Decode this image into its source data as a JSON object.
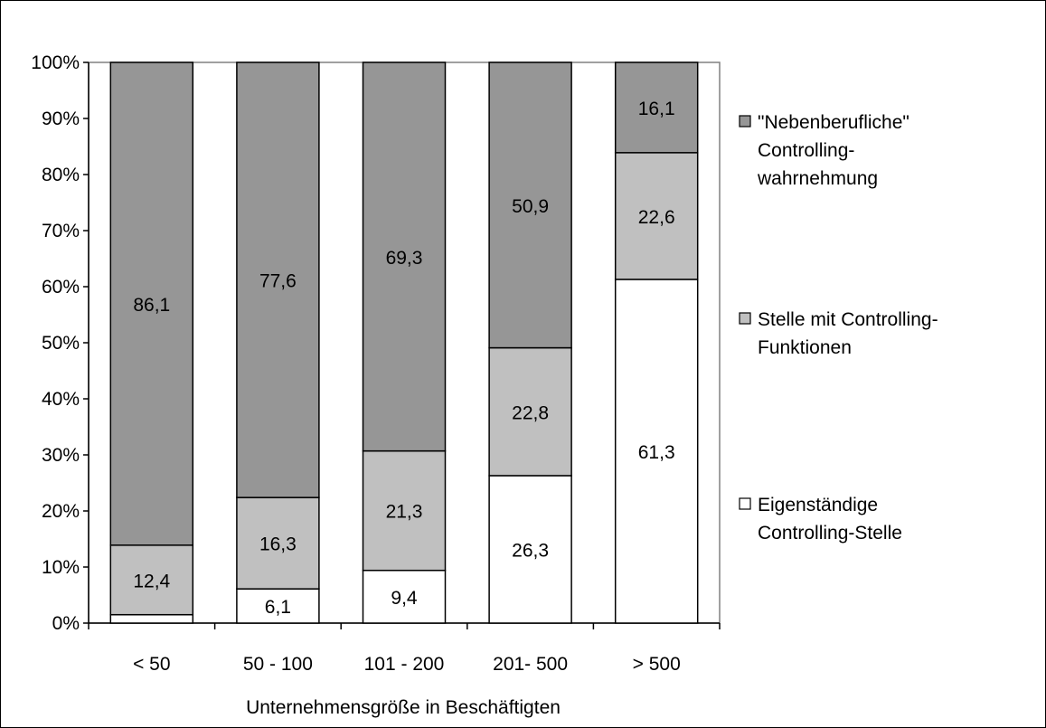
{
  "chart_data": {
    "type": "bar",
    "stacked": true,
    "title": "",
    "xlabel": "Unternehmensgröße in Beschäftigten",
    "ylabel": "",
    "ylim": [
      0,
      100
    ],
    "yticks": [
      "0%",
      "10%",
      "20%",
      "30%",
      "40%",
      "50%",
      "60%",
      "70%",
      "80%",
      "90%",
      "100%"
    ],
    "categories": [
      "< 50",
      "50 - 100",
      "101 - 200",
      "201- 500",
      "> 500"
    ],
    "series": [
      {
        "name": "Eigenständige Controlling-Stelle",
        "legend_lines": [
          "Eigenständige",
          "Controlling-Stelle"
        ],
        "color": "#ffffff",
        "values": [
          1.5,
          6.1,
          9.4,
          26.3,
          61.3
        ],
        "labels": [
          "",
          "6,1",
          "9,4",
          "26,3",
          "61,3"
        ]
      },
      {
        "name": "Stelle mit Controlling-Funktionen",
        "legend_lines": [
          "Stelle mit Controlling-",
          "Funktionen"
        ],
        "color": "#c0c0c0",
        "values": [
          12.4,
          16.3,
          21.3,
          22.8,
          22.6
        ],
        "labels": [
          "12,4",
          "16,3",
          "21,3",
          "22,8",
          "22,6"
        ]
      },
      {
        "name": "\"Nebenberufliche\" Controlling-wahrnehmung",
        "legend_lines": [
          "\"Nebenberufliche\"",
          "Controlling-",
          "wahrnehmung"
        ],
        "color": "#969696",
        "values": [
          86.1,
          77.6,
          69.3,
          50.9,
          16.1
        ],
        "labels": [
          "86,1",
          "77,6",
          "69,3",
          "50,9",
          "16,1"
        ]
      }
    ],
    "legend_position": "right",
    "legend_order": [
      2,
      1,
      0
    ],
    "grid": false
  }
}
